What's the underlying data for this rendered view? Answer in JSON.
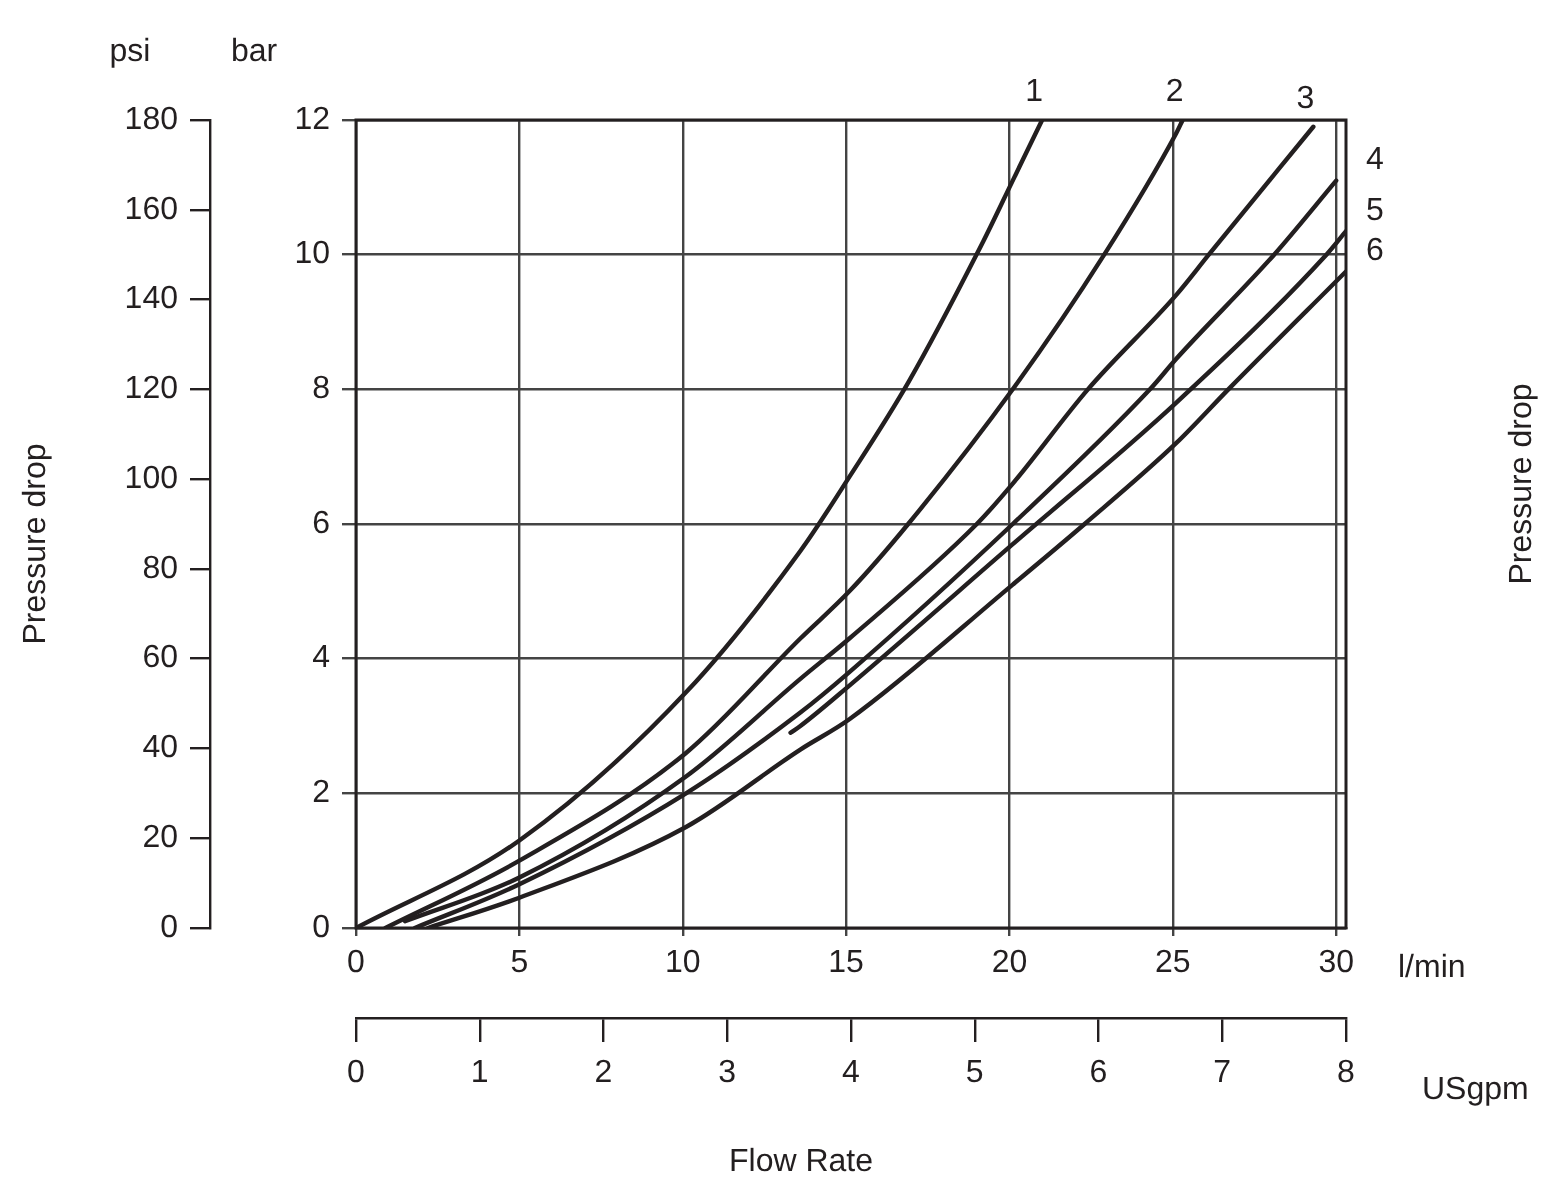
{
  "chart_data": {
    "type": "line",
    "xlabel": "l/min",
    "x2label": "USgpm",
    "ylabel": "bar",
    "y2label": "psi",
    "annotations": [
      "Pressure drop",
      "Pressure drop",
      "Flow Rate"
    ],
    "xlim": [
      0,
      30.3
    ],
    "xticks": [
      0,
      5,
      10,
      15,
      20,
      25,
      30
    ],
    "x2lim": [
      0,
      8
    ],
    "x2ticks": [
      0,
      1,
      2,
      3,
      4,
      5,
      6,
      7,
      8
    ],
    "ylim": [
      0,
      12
    ],
    "yticks": [
      0,
      2,
      4,
      6,
      8,
      10,
      12
    ],
    "y2lim": [
      0,
      180
    ],
    "y2ticks": [
      0,
      20,
      40,
      60,
      80,
      100,
      120,
      140,
      160,
      180
    ],
    "grid": true,
    "legend": false,
    "marker": "none",
    "line_style": "solid",
    "series": [
      {
        "name": "1",
        "color": "#231f20",
        "x": [
          0,
          5,
          10.1,
          13.6,
          15.1,
          16.9,
          19.2,
          20.1,
          21
        ],
        "values": [
          0,
          1.3,
          3.5,
          5.6,
          6.7,
          8.1,
          10.2,
          11.1,
          12
        ]
      },
      {
        "name": "2",
        "color": "#231f20",
        "x": [
          0.9,
          5,
          10.1,
          13.6,
          15.1,
          16.9,
          20.1,
          22.9,
          25.1,
          25.3
        ],
        "values": [
          0,
          1,
          2.6,
          4.3,
          5,
          6,
          8,
          10,
          11.8,
          12
        ]
      },
      {
        "name": "3",
        "color": "#231f20",
        "x": [
          1.5,
          5,
          10.1,
          13.6,
          15.1,
          19,
          20.1,
          22.4,
          25.1,
          26.1,
          29.3
        ],
        "values": [
          0.1,
          0.75,
          2.25,
          3.7,
          4.3,
          6,
          6.6,
          8,
          9.4,
          10,
          11.9
        ]
      },
      {
        "name": "4",
        "color": "#231f20",
        "x": [
          1.8,
          5,
          10.1,
          13.6,
          15.1,
          20.1,
          24.3,
          25.1,
          28.1,
          30
        ],
        "values": [
          0,
          0.65,
          2,
          3.2,
          3.8,
          6,
          8,
          8.45,
          10,
          11.1
        ]
      },
      {
        "name": "5",
        "color": "#231f20",
        "x": [
          13.3,
          13.6,
          15.1,
          20.1,
          25.1,
          29.7,
          30.3
        ],
        "values": [
          2.9,
          3,
          3.6,
          5.7,
          7.8,
          10,
          10.35
        ]
      },
      {
        "name": "6",
        "color": "#231f20",
        "x": [
          2.2,
          5,
          10.1,
          13.6,
          15.1,
          20.1,
          22.3,
          25.1,
          26.7,
          30.3
        ],
        "values": [
          0,
          0.45,
          1.5,
          2.65,
          3.1,
          5.1,
          6,
          7.2,
          8,
          9.75
        ]
      }
    ]
  }
}
